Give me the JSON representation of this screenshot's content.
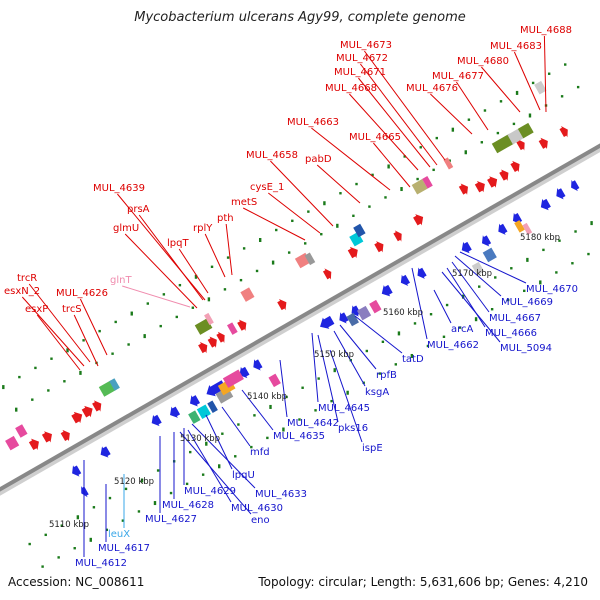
{
  "title": "Mycobacterium ulcerans Agy99, complete genome",
  "accession_text": "Accession: NC_008611",
  "topology_text": "Topology: circular; Length: 5,631,606 bp; Genes: 4,210",
  "colors": {
    "forward": "#e41a1c",
    "reverse": "#1f25e0",
    "rna_fwd": "#f2a0b5",
    "rna_rev": "#3aa7e8",
    "backbone": "#888888",
    "tick": "#1a7a1a"
  },
  "ticks": [
    {
      "label": "5110 kbp",
      "pos": 5110
    },
    {
      "label": "5120 kbp",
      "pos": 5120
    },
    {
      "label": "5130 kbp",
      "pos": 5130
    },
    {
      "label": "5140 kbp",
      "pos": 5140
    },
    {
      "label": "5150 kbp",
      "pos": 5150
    },
    {
      "label": "5160 kbp",
      "pos": 5160
    },
    {
      "label": "5170 kbp",
      "pos": 5170
    },
    {
      "label": "5180 kbp",
      "pos": 5180
    }
  ],
  "forward_labels": [
    {
      "text": "MUL_4688",
      "color": "#dd0000"
    },
    {
      "text": "MUL_4683",
      "color": "#dd0000"
    },
    {
      "text": "MUL_4673",
      "color": "#dd0000"
    },
    {
      "text": "MUL_4680",
      "color": "#dd0000"
    },
    {
      "text": "MUL_4672",
      "color": "#dd0000"
    },
    {
      "text": "MUL_4671",
      "color": "#dd0000"
    },
    {
      "text": "MUL_4677",
      "color": "#dd0000"
    },
    {
      "text": "MUL_4668",
      "color": "#dd0000"
    },
    {
      "text": "MUL_4676",
      "color": "#dd0000"
    },
    {
      "text": "MUL_4663",
      "color": "#dd0000"
    },
    {
      "text": "MUL_4665",
      "color": "#dd0000"
    },
    {
      "text": "MUL_4658",
      "color": "#dd0000"
    },
    {
      "text": "pabD",
      "color": "#dd0000"
    },
    {
      "text": "MUL_4639",
      "color": "#dd0000"
    },
    {
      "text": "cysE_1",
      "color": "#dd0000"
    },
    {
      "text": "metS",
      "color": "#dd0000"
    },
    {
      "text": "prsA",
      "color": "#dd0000"
    },
    {
      "text": "glmU",
      "color": "#dd0000"
    },
    {
      "text": "lpqT",
      "color": "#dd0000"
    },
    {
      "text": "rplY",
      "color": "#dd0000"
    },
    {
      "text": "pth",
      "color": "#dd0000"
    },
    {
      "text": "glnT",
      "color": "#f08cae"
    },
    {
      "text": "trcR",
      "color": "#dd0000"
    },
    {
      "text": "esxN_2",
      "color": "#dd0000"
    },
    {
      "text": "MUL_4626",
      "color": "#dd0000"
    },
    {
      "text": "esxP",
      "color": "#dd0000"
    },
    {
      "text": "trcS",
      "color": "#dd0000"
    }
  ],
  "reverse_labels": [
    {
      "text": "MUL_4670",
      "color": "#1515cc"
    },
    {
      "text": "MUL_4669",
      "color": "#1515cc"
    },
    {
      "text": "MUL_4667",
      "color": "#1515cc"
    },
    {
      "text": "MUL_4666",
      "color": "#1515cc"
    },
    {
      "text": "MUL_5094",
      "color": "#1515cc"
    },
    {
      "text": "arcA",
      "color": "#1515cc"
    },
    {
      "text": "MUL_4662",
      "color": "#1515cc"
    },
    {
      "text": "tatD",
      "color": "#1515cc"
    },
    {
      "text": "rpfB",
      "color": "#1515cc"
    },
    {
      "text": "ksgA",
      "color": "#1515cc"
    },
    {
      "text": "MUL_4645",
      "color": "#1515cc"
    },
    {
      "text": "pks16",
      "color": "#1515cc"
    },
    {
      "text": "MUL_4642",
      "color": "#1515cc"
    },
    {
      "text": "ispE",
      "color": "#1515cc"
    },
    {
      "text": "MUL_4635",
      "color": "#1515cc"
    },
    {
      "text": "mfd",
      "color": "#1515cc"
    },
    {
      "text": "lpqU",
      "color": "#1515cc"
    },
    {
      "text": "MUL_4633",
      "color": "#1515cc"
    },
    {
      "text": "MUL_4629",
      "color": "#1515cc"
    },
    {
      "text": "MUL_4630",
      "color": "#1515cc"
    },
    {
      "text": "MUL_4628",
      "color": "#1515cc"
    },
    {
      "text": "eno",
      "color": "#1515cc"
    },
    {
      "text": "MUL_4627",
      "color": "#1515cc"
    },
    {
      "text": "leuX",
      "color": "#3aa7e8"
    },
    {
      "text": "MUL_4617",
      "color": "#1515cc"
    },
    {
      "text": "MUL_4612",
      "color": "#1515cc"
    }
  ]
}
